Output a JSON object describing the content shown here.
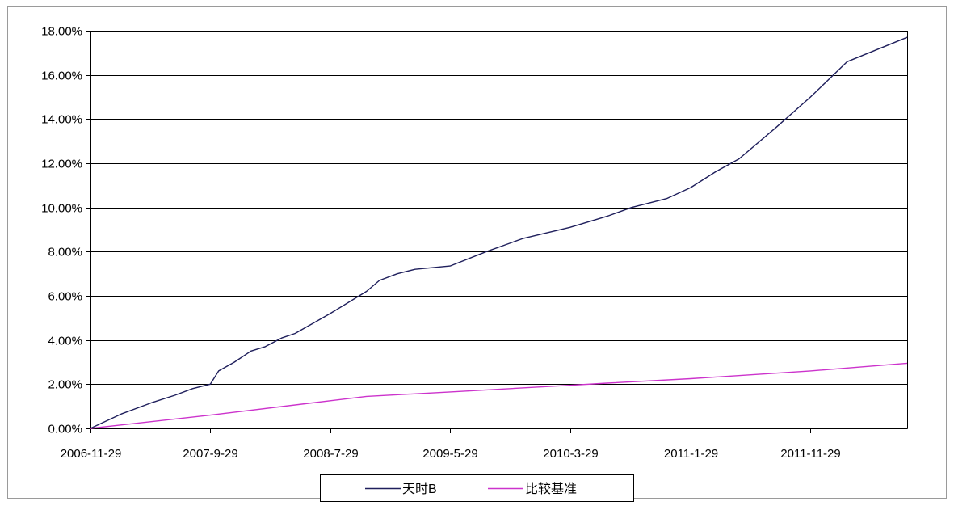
{
  "chart_data": {
    "type": "line",
    "title": "",
    "xlabel": "",
    "ylabel": "",
    "x_range": [
      "2006-11-29",
      "2012-07-31"
    ],
    "xticks": [
      "2006-11-29",
      "2007-9-29",
      "2008-7-29",
      "2009-5-29",
      "2010-3-29",
      "2011-1-29",
      "2011-11-29"
    ],
    "yticks": [
      "0.00%",
      "2.00%",
      "4.00%",
      "6.00%",
      "8.00%",
      "10.00%",
      "12.00%",
      "14.00%",
      "16.00%",
      "18.00%"
    ],
    "ylim": [
      0,
      18
    ],
    "y_unit": "%",
    "grid": "horizontal",
    "legend_position": "bottom",
    "series": [
      {
        "name": "天时B",
        "color": "#1f1f5c",
        "points": [
          [
            "2006-11-29",
            0.0
          ],
          [
            "2007-02-15",
            0.65
          ],
          [
            "2007-05-01",
            1.15
          ],
          [
            "2007-07-01",
            1.5
          ],
          [
            "2007-08-15",
            1.8
          ],
          [
            "2007-09-29",
            2.0
          ],
          [
            "2007-10-20",
            2.6
          ],
          [
            "2007-11-29",
            3.0
          ],
          [
            "2008-01-10",
            3.5
          ],
          [
            "2008-02-15",
            3.7
          ],
          [
            "2008-03-29",
            4.1
          ],
          [
            "2008-05-01",
            4.3
          ],
          [
            "2008-07-29",
            5.2
          ],
          [
            "2008-10-29",
            6.2
          ],
          [
            "2008-12-01",
            6.7
          ],
          [
            "2009-01-15",
            7.0
          ],
          [
            "2009-03-01",
            7.2
          ],
          [
            "2009-05-29",
            7.35
          ],
          [
            "2009-08-29",
            8.0
          ],
          [
            "2009-12-01",
            8.6
          ],
          [
            "2010-03-29",
            9.1
          ],
          [
            "2010-07-01",
            9.6
          ],
          [
            "2010-09-01",
            10.0
          ],
          [
            "2010-11-29",
            10.4
          ],
          [
            "2011-01-29",
            10.9
          ],
          [
            "2011-04-01",
            11.6
          ],
          [
            "2011-06-01",
            12.2
          ],
          [
            "2011-09-01",
            13.6
          ],
          [
            "2011-11-29",
            15.0
          ],
          [
            "2012-03-01",
            16.6
          ],
          [
            "2012-07-31",
            17.7
          ]
        ]
      },
      {
        "name": "比较基准",
        "color": "#cc33cc",
        "points": [
          [
            "2006-11-29",
            0.0
          ],
          [
            "2007-09-29",
            0.6
          ],
          [
            "2008-07-29",
            1.25
          ],
          [
            "2008-10-29",
            1.45
          ],
          [
            "2009-05-29",
            1.65
          ],
          [
            "2010-03-29",
            1.95
          ],
          [
            "2010-07-01",
            2.05
          ],
          [
            "2011-01-29",
            2.25
          ],
          [
            "2011-11-29",
            2.6
          ],
          [
            "2012-07-31",
            2.95
          ]
        ]
      }
    ]
  }
}
